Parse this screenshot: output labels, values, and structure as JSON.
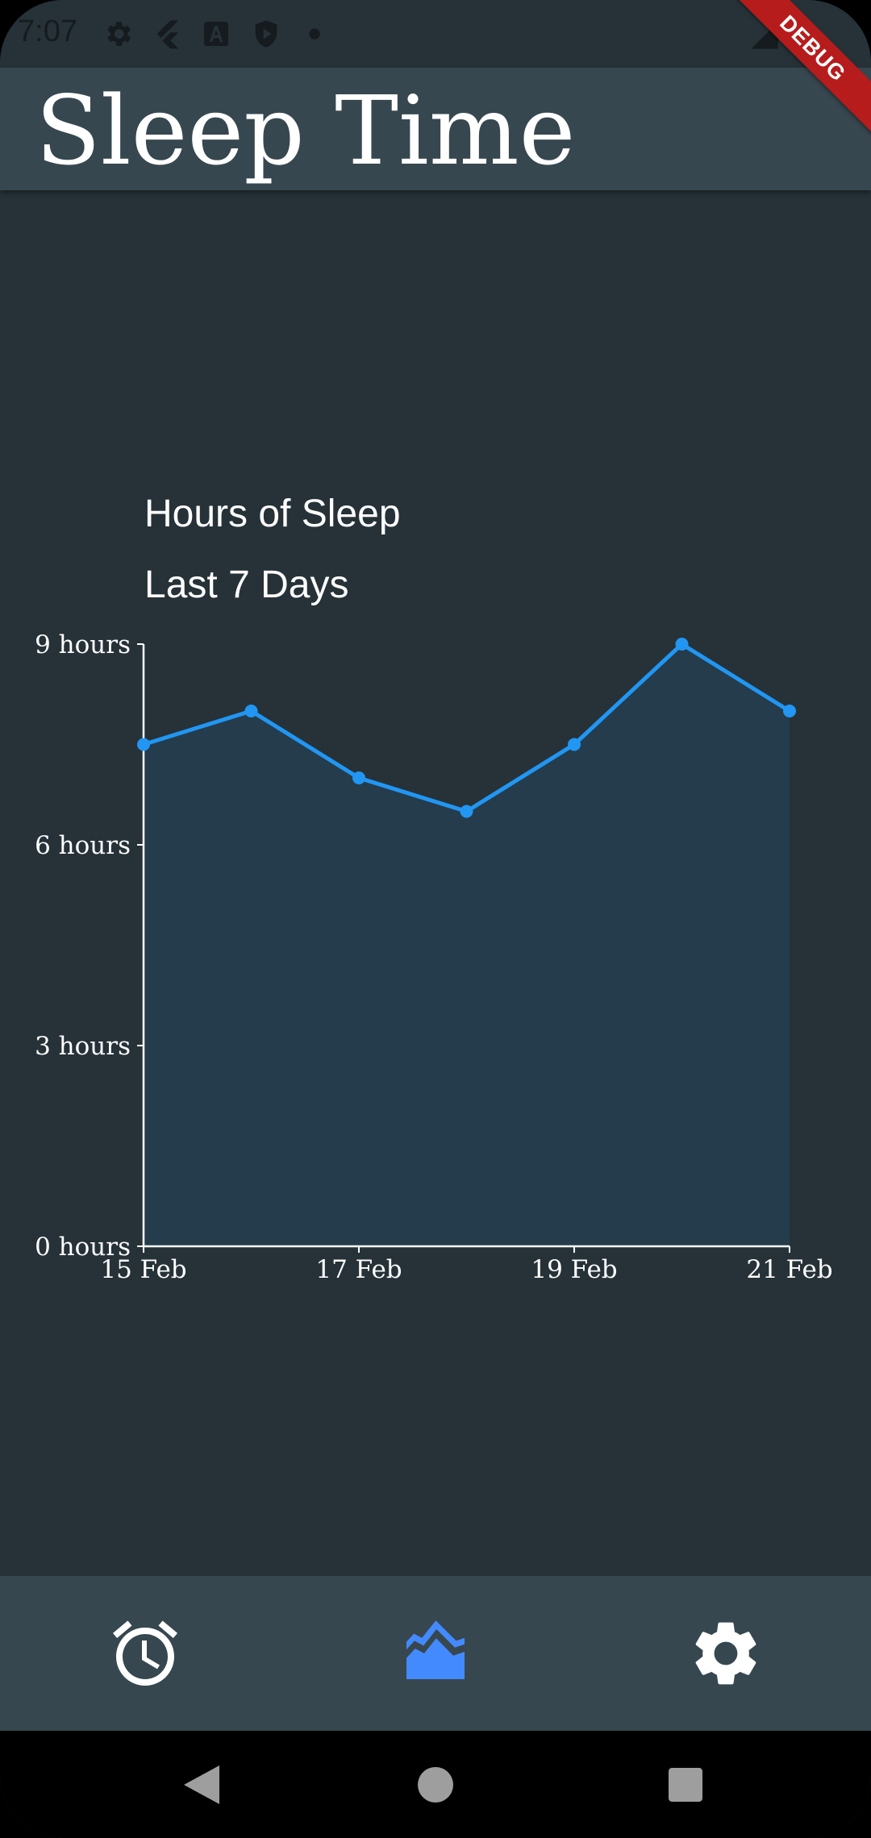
{
  "status_bar": {
    "time": "7:07"
  },
  "app_bar": {
    "title": "Sleep Time"
  },
  "debug_banner": "DEBUG",
  "chart_data": {
    "type": "area",
    "title": "Hours of Sleep",
    "subtitle": "Last 7 Days",
    "x": [
      "15 Feb",
      "16 Feb",
      "17 Feb",
      "18 Feb",
      "19 Feb",
      "20 Feb",
      "21 Feb"
    ],
    "x_tick_labels": [
      "15 Feb",
      "17 Feb",
      "19 Feb",
      "21 Feb"
    ],
    "series": [
      {
        "values": [
          7.5,
          8,
          7,
          6.5,
          7.5,
          9,
          8
        ]
      }
    ],
    "y_ticks": [
      0,
      3,
      6,
      9
    ],
    "y_tick_labels": [
      "0 hours",
      "3 hours",
      "6 hours",
      "9 hours"
    ],
    "ylim": [
      0,
      9
    ],
    "grid": false,
    "colors": {
      "line": "#2196f3",
      "fill": "#243c4c",
      "axis": "#ffffff"
    }
  },
  "bottom_nav": {
    "items": [
      {
        "icon": "alarm-icon",
        "selected": false
      },
      {
        "icon": "area-chart-icon",
        "selected": true
      },
      {
        "icon": "gear-icon",
        "selected": false
      }
    ],
    "selected_color": "#448aff",
    "unselected_color": "#ffffff"
  },
  "colors": {
    "background": "#263238",
    "app_bar": "#37474f",
    "debug_ribbon": "#b71c1c"
  }
}
